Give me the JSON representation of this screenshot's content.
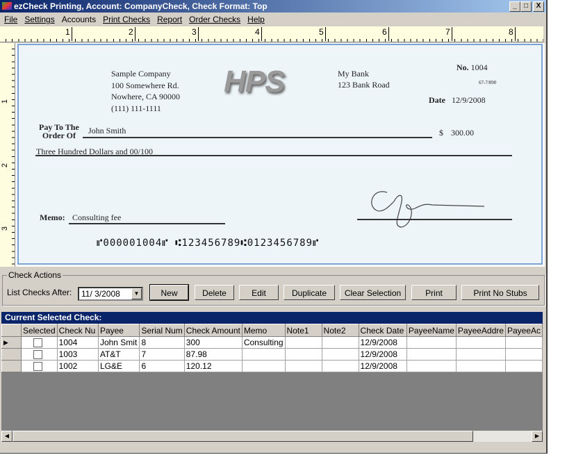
{
  "window": {
    "title": "ezCheck Printing, Account: CompanyCheck, Check Format: Top",
    "controls": [
      "_",
      "□",
      "X"
    ]
  },
  "menu": [
    "File",
    "Settings",
    "Accounts",
    "Print Checks",
    "Report",
    "Order Checks",
    "Help"
  ],
  "ruler": {
    "h": [
      "1",
      "2",
      "3",
      "4",
      "5",
      "6",
      "7",
      "8"
    ],
    "v": [
      "1",
      "2",
      "3"
    ]
  },
  "check": {
    "company": [
      "Sample Company",
      "100 Somewhere Rd.",
      "Nowhere, CA 90000",
      "(111) 111-1111"
    ],
    "logo": "HPS",
    "bank": [
      "My Bank",
      "123 Bank Road"
    ],
    "no_label": "No.",
    "number": "1004",
    "routing_fraction": "67-7/890",
    "date_label": "Date",
    "date": "12/9/2008",
    "pay_to_label_1": "Pay To The",
    "pay_to_label_2": "Order Of",
    "payee": "John Smith",
    "dollar_sign": "$",
    "amount": "300.00",
    "amount_words": "Three Hundred  Dollars and 00/100",
    "memo_label": "Memo:",
    "memo": "Consulting fee",
    "micr": "⑈000001004⑈ ⑆123456789⑆0123456789⑈"
  },
  "actions": {
    "group_label": "Check Actions",
    "list_after_label": "List Checks After:",
    "list_after_value": "11/ 3/2008",
    "buttons": [
      "New",
      "Delete",
      "Edit",
      "Duplicate",
      "Clear Selection",
      "Print",
      "Print No Stubs"
    ]
  },
  "grid": {
    "title": "Current Selected Check:",
    "columns": [
      "Selected",
      "Check Nu",
      "Payee",
      "Serial Num",
      "Check Amount",
      "Memo",
      "Note1",
      "Note2",
      "Check Date",
      "PayeeName",
      "PayeeAddre",
      "PayeeAc"
    ],
    "rows": [
      [
        "",
        "1004",
        "John Smit",
        "8",
        "300",
        "Consulting",
        "",
        "",
        "12/9/2008",
        "",
        "",
        ""
      ],
      [
        "",
        "1003",
        "AT&T",
        "7",
        "87.98",
        "",
        "",
        "",
        "12/9/2008",
        "",
        "",
        ""
      ],
      [
        "",
        "1002",
        "LG&E",
        "6",
        "120.12",
        "",
        "",
        "",
        "12/9/2008",
        "",
        "",
        ""
      ]
    ],
    "current_row_marker": "▶"
  }
}
